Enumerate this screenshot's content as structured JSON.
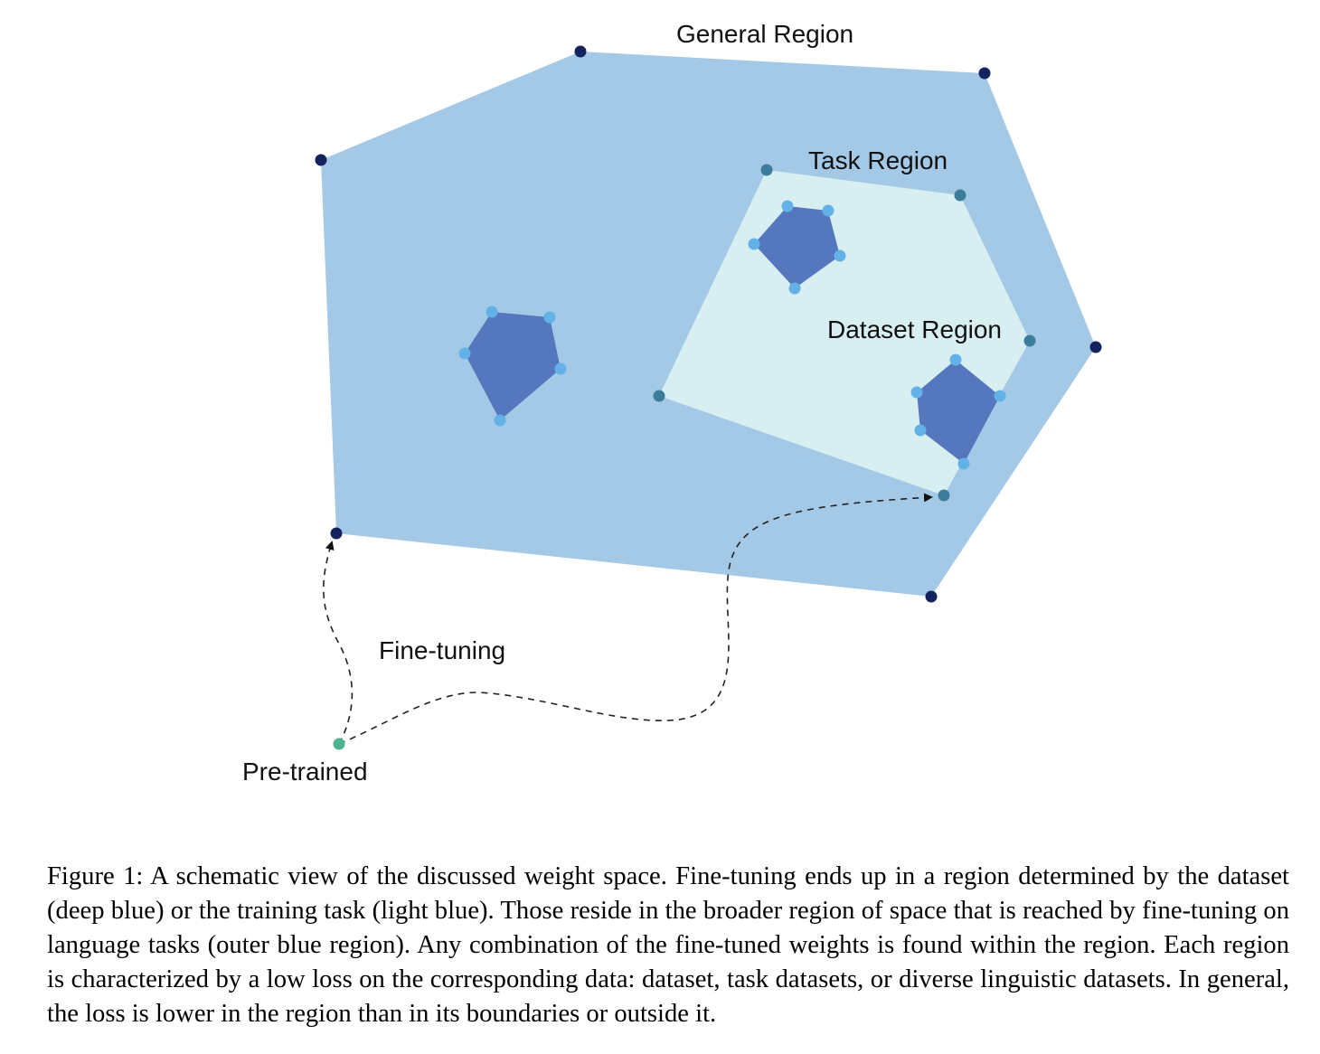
{
  "labels": {
    "general_region": "General Region",
    "task_region": "Task Region",
    "dataset_region": "Dataset Region",
    "fine_tuning": "Fine-tuning",
    "pre_trained": "Pre-trained"
  },
  "colors": {
    "general_fill": "#a4c9e6",
    "task_fill": "#d8eff2",
    "dataset_fill": "#5577bd",
    "general_vertex": "#14235e",
    "task_vertex": "#3c7d9c",
    "dataset_vertex": "#62b2e8",
    "pretrained_point": "#4fb38f"
  },
  "caption": "Figure 1: A schematic view of the discussed weight space. Fine-tuning ends up in a region determined by the dataset (deep blue) or the training task (light blue). Those reside in the broader region of space that is reached by fine-tuning on language tasks (outer blue region). Any combination of the fine-tuned weights is found within the region. Each region is characterized by a low loss on the corresponding data: dataset, task datasets, or diverse linguistic datasets. In general, the loss is lower in the region than in its boundaries or outside it."
}
